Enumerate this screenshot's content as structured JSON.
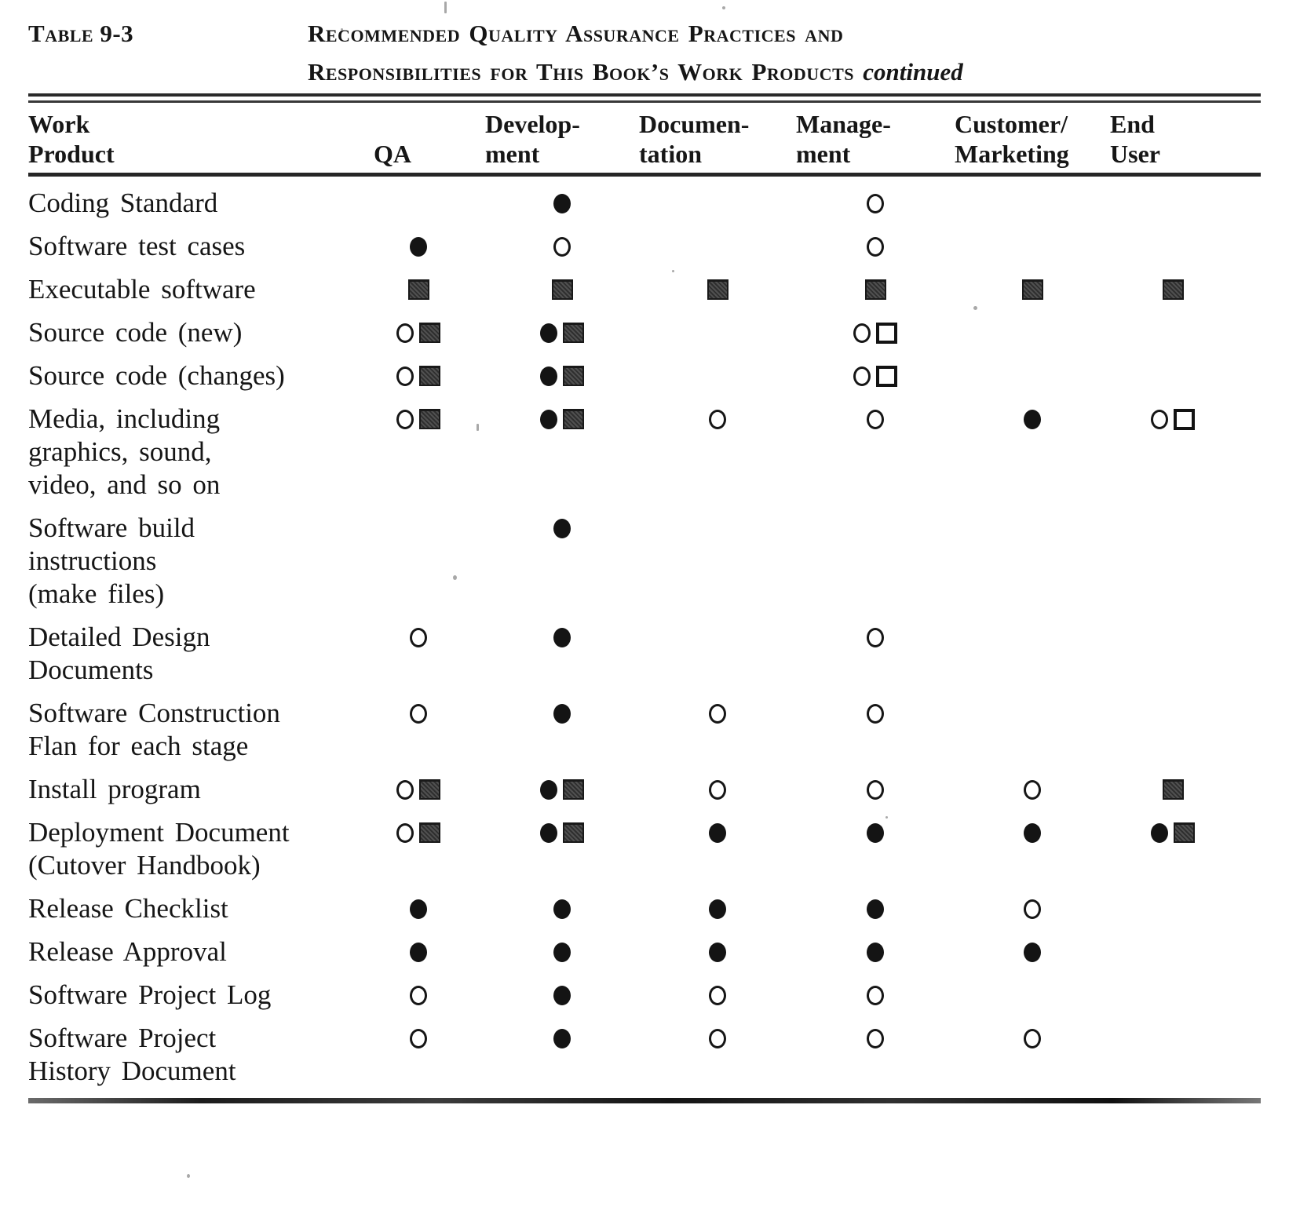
{
  "caption": {
    "label": "Table 9-3",
    "title_line1": "Recommended Quality Assurance Practices and",
    "title_line2": "Responsibilities for This Book’s Work Products",
    "continued": "continued"
  },
  "table": {
    "columns": [
      {
        "id": "product",
        "line1": "Work",
        "line2": "Product"
      },
      {
        "id": "qa",
        "line1": "",
        "line2": "QA"
      },
      {
        "id": "development",
        "line1": "Develop-",
        "line2": "ment"
      },
      {
        "id": "documentation",
        "line1": "Documen-",
        "line2": "tation"
      },
      {
        "id": "management",
        "line1": "Manage-",
        "line2": "ment"
      },
      {
        "id": "customer_marketing",
        "line1": "Customer/",
        "line2": "Marketing"
      },
      {
        "id": "end_user",
        "line1": "End",
        "line2": "User"
      }
    ],
    "symbols": {
      "fc": "filled-circle",
      "oc": "open-circle",
      "fs": "filled-square",
      "os": "open-square"
    },
    "ink_color": "#161616",
    "rows": [
      {
        "product_lines": [
          "Coding Standard"
        ],
        "qa": [],
        "development": [
          "fc"
        ],
        "documentation": [],
        "management": [
          "oc"
        ],
        "customer_marketing": [],
        "end_user": []
      },
      {
        "product_lines": [
          "Software test cases"
        ],
        "qa": [
          "fc"
        ],
        "development": [
          "oc"
        ],
        "documentation": [],
        "management": [
          "oc"
        ],
        "customer_marketing": [],
        "end_user": []
      },
      {
        "product_lines": [
          "Executable software"
        ],
        "qa": [
          "fs"
        ],
        "development": [
          "fs"
        ],
        "documentation": [
          "fs"
        ],
        "management": [
          "fs"
        ],
        "customer_marketing": [
          "fs"
        ],
        "end_user": [
          "fs"
        ]
      },
      {
        "product_lines": [
          "Source code (new)"
        ],
        "qa": [
          "oc",
          "fs"
        ],
        "development": [
          "fc",
          "fs"
        ],
        "documentation": [],
        "management": [
          "oc",
          "os"
        ],
        "customer_marketing": [],
        "end_user": []
      },
      {
        "product_lines": [
          "Source code (changes)"
        ],
        "qa": [
          "oc",
          "fs"
        ],
        "development": [
          "fc",
          "fs"
        ],
        "documentation": [],
        "management": [
          "oc",
          "os"
        ],
        "customer_marketing": [],
        "end_user": []
      },
      {
        "product_lines": [
          "Media, including",
          "graphics, sound,",
          "video, and so on"
        ],
        "qa": [
          "oc",
          "fs"
        ],
        "development": [
          "fc",
          "fs"
        ],
        "documentation": [
          "oc"
        ],
        "management": [
          "oc"
        ],
        "customer_marketing": [
          "fc"
        ],
        "end_user": [
          "oc",
          "os"
        ]
      },
      {
        "product_lines": [
          "Software build",
          "instructions",
          "(make files)"
        ],
        "qa": [],
        "development": [
          "fc"
        ],
        "documentation": [],
        "management": [],
        "customer_marketing": [],
        "end_user": []
      },
      {
        "product_lines": [
          "Detailed Design",
          "Documents"
        ],
        "qa": [
          "oc"
        ],
        "development": [
          "fc"
        ],
        "documentation": [],
        "management": [
          "oc"
        ],
        "customer_marketing": [],
        "end_user": []
      },
      {
        "product_lines": [
          "Software Construction",
          "Flan for each stage"
        ],
        "qa": [
          "oc"
        ],
        "development": [
          "fc"
        ],
        "documentation": [
          "oc"
        ],
        "management": [
          "oc"
        ],
        "customer_marketing": [],
        "end_user": []
      },
      {
        "product_lines": [
          "Install program"
        ],
        "qa": [
          "oc",
          "fs"
        ],
        "development": [
          "fc",
          "fs"
        ],
        "documentation": [
          "oc"
        ],
        "management": [
          "oc"
        ],
        "customer_marketing": [
          "oc"
        ],
        "end_user": [
          "fs"
        ]
      },
      {
        "product_lines": [
          "Deployment Document",
          "(Cutover Handbook)"
        ],
        "qa": [
          "oc",
          "fs"
        ],
        "development": [
          "fc",
          "fs"
        ],
        "documentation": [
          "fc"
        ],
        "management": [
          "fc"
        ],
        "customer_marketing": [
          "fc"
        ],
        "end_user": [
          "fc",
          "fs"
        ]
      },
      {
        "product_lines": [
          "Release Checklist"
        ],
        "qa": [
          "fc"
        ],
        "development": [
          "fc"
        ],
        "documentation": [
          "fc"
        ],
        "management": [
          "fc"
        ],
        "customer_marketing": [
          "oc"
        ],
        "end_user": []
      },
      {
        "product_lines": [
          "Release Approval"
        ],
        "qa": [
          "fc"
        ],
        "development": [
          "fc"
        ],
        "documentation": [
          "fc"
        ],
        "management": [
          "fc"
        ],
        "customer_marketing": [
          "fc"
        ],
        "end_user": []
      },
      {
        "product_lines": [
          "Software Project Log"
        ],
        "qa": [
          "oc"
        ],
        "development": [
          "fc"
        ],
        "documentation": [
          "oc"
        ],
        "management": [
          "oc"
        ],
        "customer_marketing": [],
        "end_user": []
      },
      {
        "product_lines": [
          "Software Project",
          "History Document"
        ],
        "qa": [
          "oc"
        ],
        "development": [
          "fc"
        ],
        "documentation": [
          "oc"
        ],
        "management": [
          "oc"
        ],
        "customer_marketing": [
          "oc"
        ],
        "end_user": []
      }
    ]
  }
}
